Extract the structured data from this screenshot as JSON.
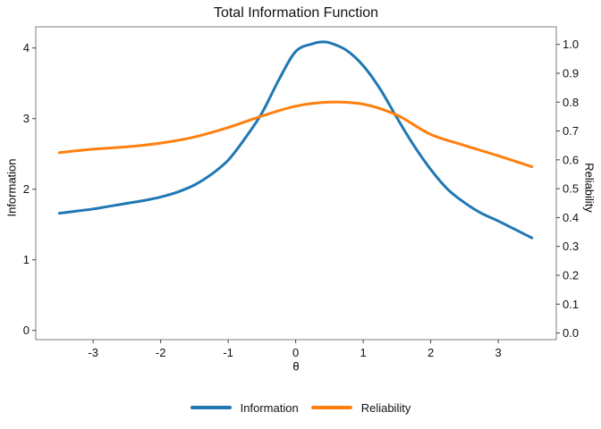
{
  "title": "Total Information Function",
  "axes": {
    "x_label": "θ",
    "y_left_label": "Information",
    "y_right_label": "Reliability"
  },
  "legend": [
    {
      "label": "Information",
      "color": "#1f77b4"
    },
    {
      "label": "Reliability",
      "color": "#ff7f0e"
    }
  ],
  "colors": {
    "information": "#1f77b4",
    "reliability": "#ff7f0e",
    "panel_border": "#7f7f7f",
    "tick": "#404040",
    "text": "#111111",
    "background": "#ffffff"
  },
  "chart_data": {
    "type": "line",
    "title": "Total Information Function",
    "xlabel": "θ",
    "ylabel_left": "Information",
    "ylabel_right": "Reliability",
    "grid": false,
    "legend_position": "bottom",
    "x_range": [
      -3.85,
      3.86
    ],
    "y_left_range": [
      -0.13,
      4.3
    ],
    "y_right_range": [
      -0.023,
      1.061
    ],
    "x_ticks": [
      -3,
      -2,
      -1,
      0,
      1,
      2,
      3
    ],
    "y_left_ticks": [
      0,
      1,
      2,
      3,
      4
    ],
    "y_right_ticks": [
      0,
      0.1,
      0.2,
      0.3,
      0.4,
      0.5,
      0.6,
      0.7,
      0.8,
      0.9,
      1
    ],
    "series": [
      {
        "name": "Information",
        "yaxis": "left",
        "color": "#1f77b4",
        "x": [
          -3.5,
          -3.25,
          -3,
          -2.75,
          -2.5,
          -2.25,
          -2,
          -1.75,
          -1.5,
          -1.25,
          -1,
          -0.75,
          -0.5,
          -0.25,
          0,
          0.25,
          0.375,
          0.5,
          0.75,
          1,
          1.25,
          1.5,
          1.75,
          2,
          2.25,
          2.5,
          2.75,
          3,
          3.25,
          3.5
        ],
        "y": [
          1.66,
          1.69,
          1.72,
          1.76,
          1.8,
          1.84,
          1.89,
          1.96,
          2.06,
          2.21,
          2.41,
          2.72,
          3.08,
          3.55,
          3.95,
          4.06,
          4.085,
          4.075,
          3.97,
          3.75,
          3.42,
          3.01,
          2.62,
          2.28,
          2.0,
          1.81,
          1.66,
          1.55,
          1.43,
          1.31
        ]
      },
      {
        "name": "Reliability",
        "yaxis": "right",
        "color": "#ff7f0e",
        "x": [
          -3.5,
          -3,
          -2.5,
          -2,
          -1.5,
          -1,
          -0.5,
          0,
          0.5,
          1,
          1.5,
          2,
          2.5,
          3,
          3.5
        ],
        "y": [
          0.625,
          0.637,
          0.645,
          0.658,
          0.679,
          0.712,
          0.752,
          0.786,
          0.8,
          0.793,
          0.755,
          0.688,
          0.65,
          0.614,
          0.576
        ]
      }
    ]
  }
}
